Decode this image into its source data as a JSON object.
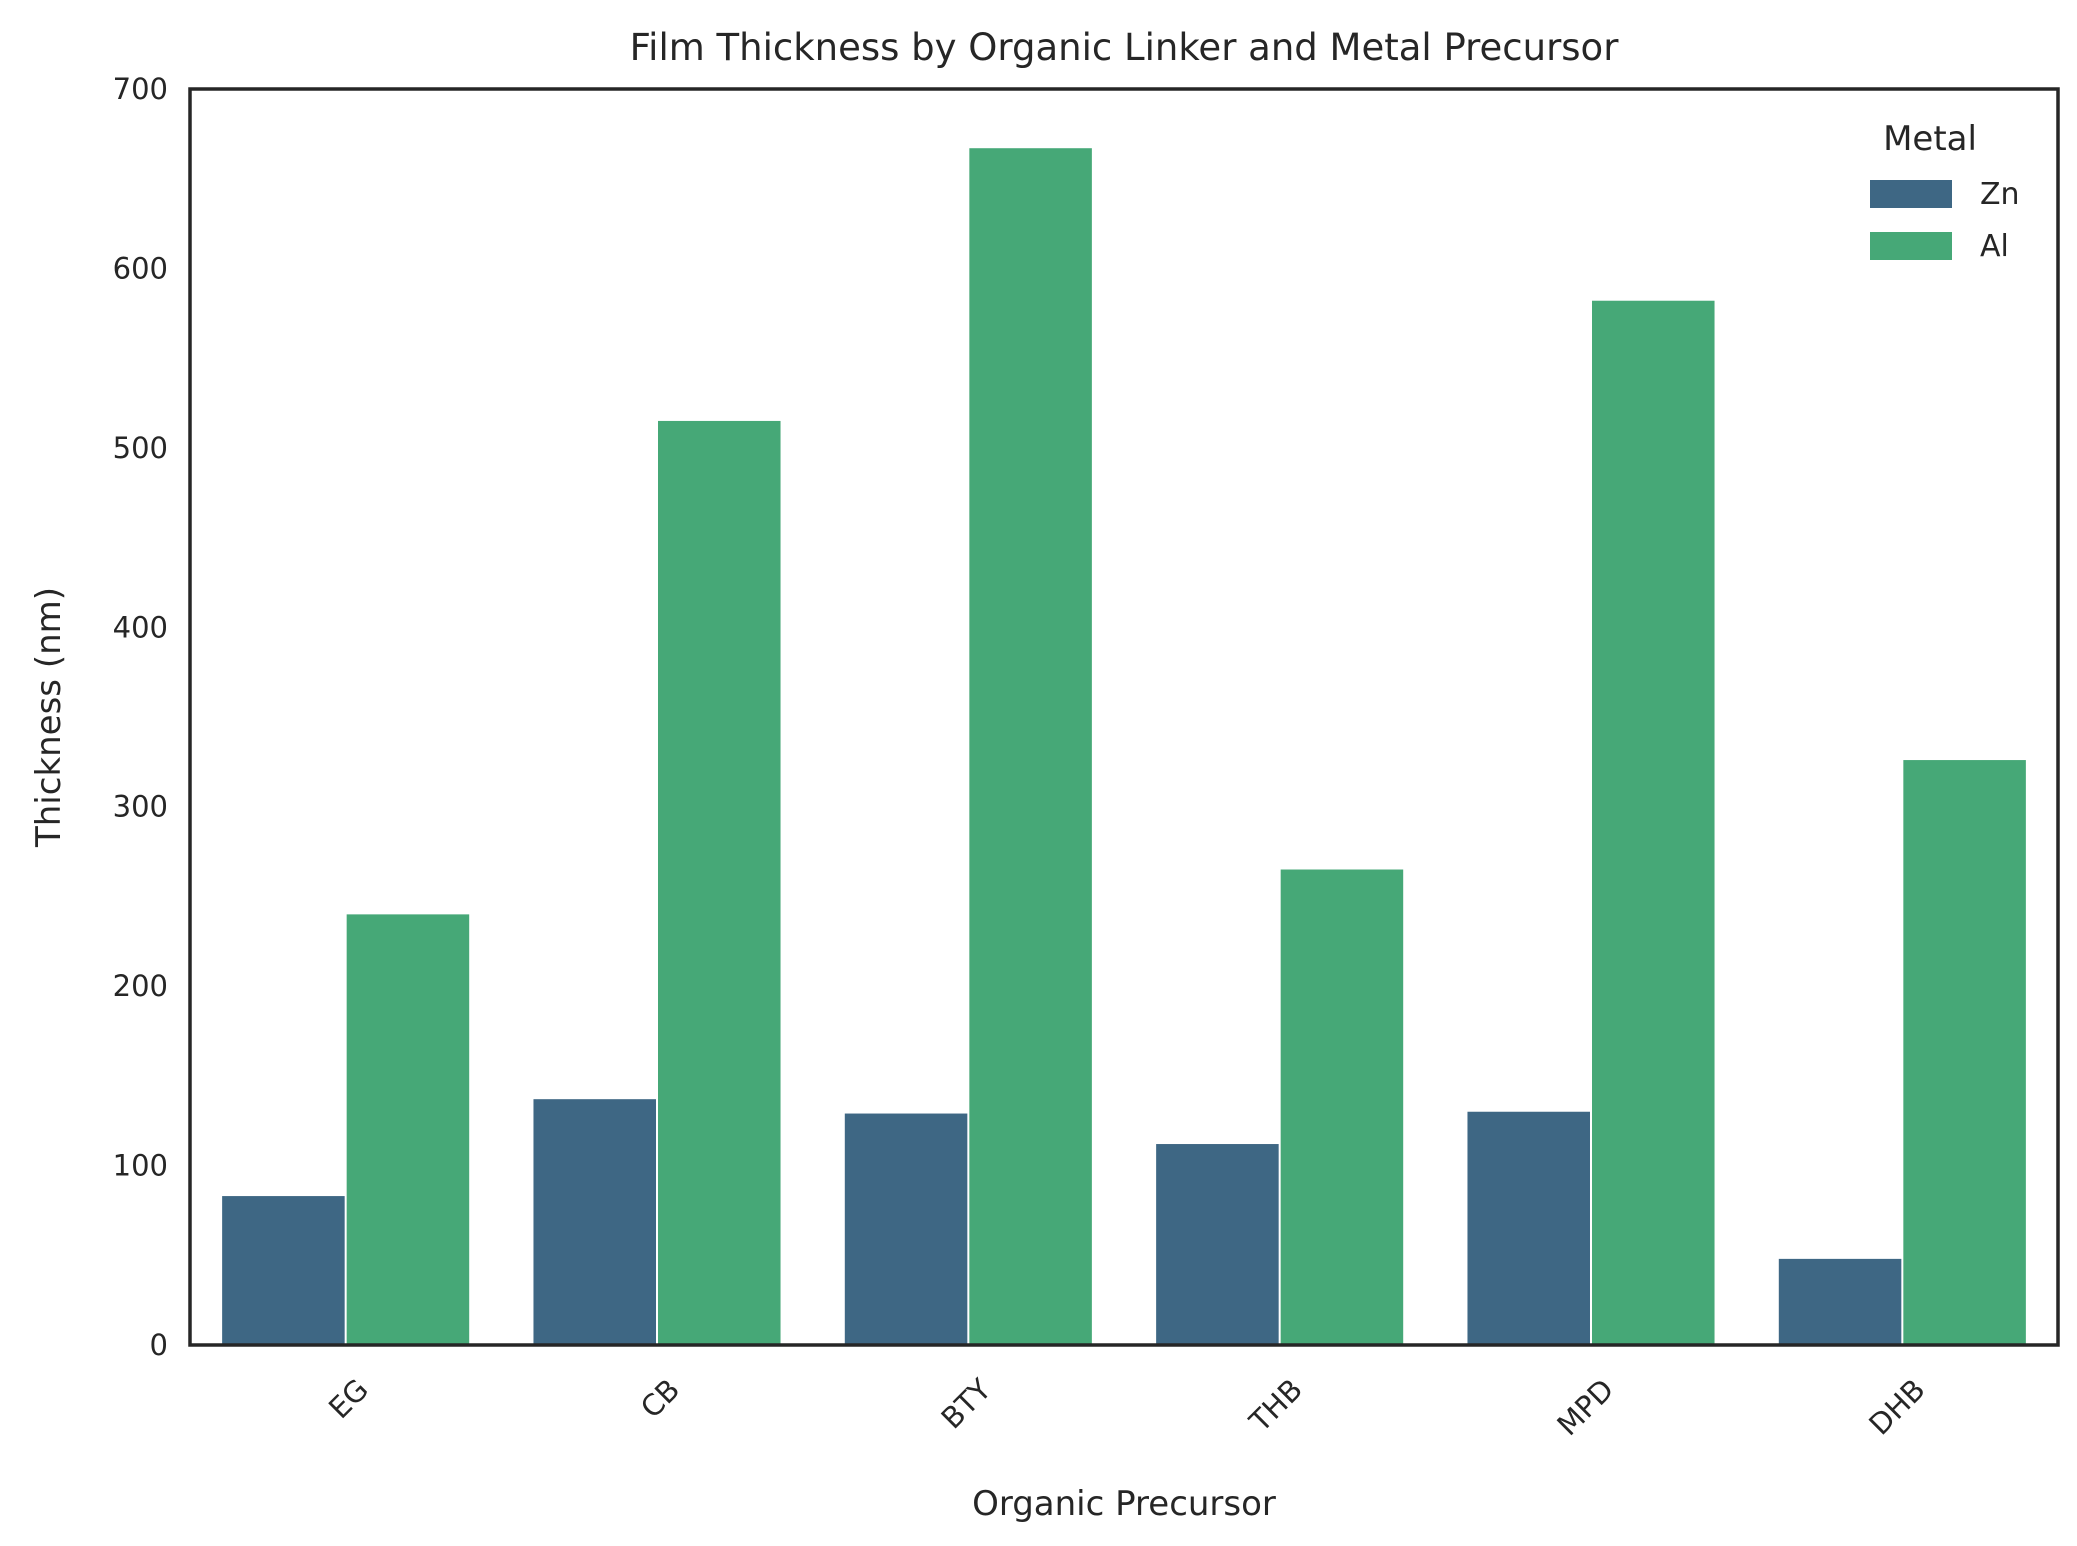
{
  "chart_data": {
    "type": "bar",
    "title": "Film Thickness by Organic Linker and Metal Precursor",
    "xlabel": "Organic Precursor",
    "ylabel": "Thickness (nm)",
    "categories": [
      "EG",
      "CB",
      "BTY",
      "THB",
      "MPD",
      "DHB"
    ],
    "series": [
      {
        "name": "Zn",
        "color": "#3e6784",
        "values": [
          83,
          137,
          129,
          112,
          130,
          48
        ]
      },
      {
        "name": "Al",
        "color": "#46a877",
        "values": [
          240,
          515,
          667,
          265,
          582,
          326
        ]
      }
    ],
    "ylim": [
      0,
      700
    ],
    "yticks": [
      0,
      100,
      200,
      300,
      400,
      500,
      600,
      700
    ],
    "grid": false,
    "legend": {
      "title": "Metal",
      "position": "top-right"
    }
  }
}
